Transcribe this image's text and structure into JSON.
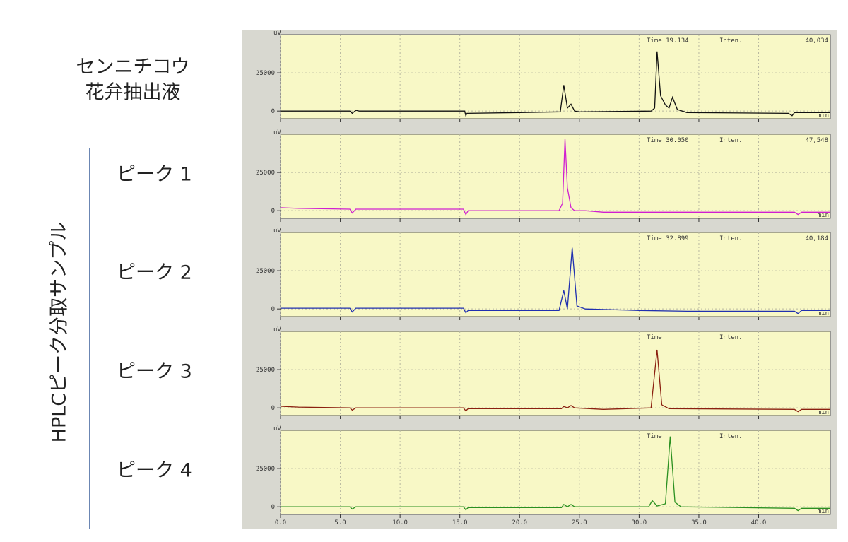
{
  "group_label": "HPLCピーク分取サンプル",
  "chart_data": [
    {
      "type": "line",
      "label": [
        "センニチコウ",
        "花弁抽出液"
      ],
      "ylabel": "uV",
      "xlabel": "min",
      "annotations": [
        "Time 19.134",
        "Inten.",
        "40,034"
      ],
      "color": "#111111",
      "xlim": [
        0,
        46
      ],
      "ylim": [
        -5000,
        50000
      ],
      "yticks": [
        0,
        25000
      ],
      "grid": true,
      "x": [
        0,
        5.8,
        6.0,
        6.3,
        6.6,
        15.4,
        15.5,
        15.6,
        20,
        23.4,
        23.7,
        24.0,
        24.3,
        24.6,
        25,
        31,
        31.3,
        31.5,
        31.8,
        32.2,
        32.5,
        32.8,
        33.2,
        34,
        42.5,
        42.8,
        43,
        46
      ],
      "values": [
        0,
        0,
        -1500,
        500,
        0,
        0,
        -3000,
        -1500,
        -1000,
        -500,
        17000,
        2000,
        4500,
        0,
        -500,
        0,
        2000,
        39000,
        10000,
        4000,
        2000,
        9000,
        1000,
        -1000,
        -1500,
        -3000,
        -1000,
        -1000
      ]
    },
    {
      "type": "line",
      "label": [
        "ピーク 1"
      ],
      "ylabel": "uV",
      "xlabel": "min",
      "annotations": [
        "Time 30.050",
        "Inten.",
        "47,548"
      ],
      "color": "#d020d0",
      "xlim": [
        0,
        46
      ],
      "ylim": [
        -5000,
        50000
      ],
      "yticks": [
        0,
        25000
      ],
      "grid": true,
      "x": [
        0,
        1.5,
        5.8,
        6.0,
        6.3,
        15.3,
        15.5,
        15.7,
        23.3,
        23.6,
        23.8,
        24.0,
        24.3,
        24.6,
        25.5,
        27,
        43,
        43.3,
        43.6,
        46
      ],
      "values": [
        2000,
        1500,
        1000,
        -1500,
        1000,
        1000,
        -2500,
        0,
        0,
        5000,
        47000,
        15000,
        2000,
        0,
        0,
        -1000,
        -1000,
        -2500,
        -1000,
        -1000
      ]
    },
    {
      "type": "line",
      "label": [
        "ピーク 2"
      ],
      "ylabel": "uV",
      "xlabel": "min",
      "annotations": [
        "Time 32.899",
        "Inten.",
        "40,184"
      ],
      "color": "#2030b0",
      "xlim": [
        0,
        46
      ],
      "ylim": [
        -5000,
        50000
      ],
      "yticks": [
        0,
        25000
      ],
      "grid": true,
      "x": [
        0,
        5.8,
        6.0,
        6.3,
        15.3,
        15.5,
        15.7,
        23.3,
        23.7,
        24.0,
        24.4,
        24.8,
        25.5,
        30,
        34,
        43,
        43.3,
        43.6,
        46
      ],
      "values": [
        500,
        500,
        -2000,
        500,
        500,
        -2500,
        -1000,
        -1000,
        12000,
        0,
        40000,
        2000,
        0,
        -1000,
        -1500,
        -1500,
        -3000,
        -1000,
        -1000
      ]
    },
    {
      "type": "line",
      "label": [
        "ピーク 3"
      ],
      "ylabel": "uV",
      "xlabel": "min",
      "annotations": [
        "Time",
        "Inten."
      ],
      "color": "#8b2010",
      "xlim": [
        0,
        46
      ],
      "ylim": [
        -5000,
        50000
      ],
      "yticks": [
        0,
        25000
      ],
      "grid": true,
      "x": [
        0,
        1.5,
        5.8,
        6.0,
        6.3,
        15.3,
        15.5,
        15.7,
        23.5,
        23.7,
        24.0,
        24.3,
        24.6,
        27,
        31.0,
        31.5,
        31.9,
        32.5,
        43,
        43.3,
        43.6,
        46
      ],
      "values": [
        1000,
        500,
        0,
        -1500,
        0,
        0,
        -2000,
        -500,
        -500,
        1000,
        0,
        1500,
        0,
        -1000,
        0,
        38000,
        2000,
        -500,
        -1000,
        -2500,
        -1000,
        -1000
      ]
    },
    {
      "type": "line",
      "label": [
        "ピーク 4"
      ],
      "ylabel": "uV",
      "xlabel": "min",
      "annotations": [
        "Time",
        "Inten."
      ],
      "color": "#2a9020",
      "xlim": [
        0,
        46
      ],
      "ylim": [
        -5000,
        50000
      ],
      "yticks": [
        0,
        25000
      ],
      "grid": true,
      "xticks": [
        {
          "value": 0,
          "label": "0.0"
        },
        {
          "value": 5,
          "label": "5.0"
        },
        {
          "value": 10,
          "label": "10.0"
        },
        {
          "value": 15,
          "label": "15.0"
        },
        {
          "value": 20,
          "label": "20.0"
        },
        {
          "value": 25,
          "label": "25.0"
        },
        {
          "value": 30,
          "label": "30.0"
        },
        {
          "value": 35,
          "label": "35.0"
        },
        {
          "value": 40,
          "label": "40.0"
        }
      ],
      "x": [
        0,
        5.8,
        6.0,
        6.3,
        15.3,
        15.5,
        15.7,
        23.5,
        23.7,
        24.0,
        24.3,
        24.6,
        30.8,
        31.1,
        31.5,
        32.2,
        32.6,
        33.0,
        33.5,
        43,
        43.3,
        43.6,
        46
      ],
      "values": [
        0,
        0,
        -1500,
        0,
        0,
        -2000,
        -500,
        -500,
        1500,
        0,
        1500,
        0,
        0,
        4000,
        500,
        2000,
        46000,
        3000,
        0,
        -1000,
        -2500,
        -1000,
        -1000
      ]
    }
  ]
}
